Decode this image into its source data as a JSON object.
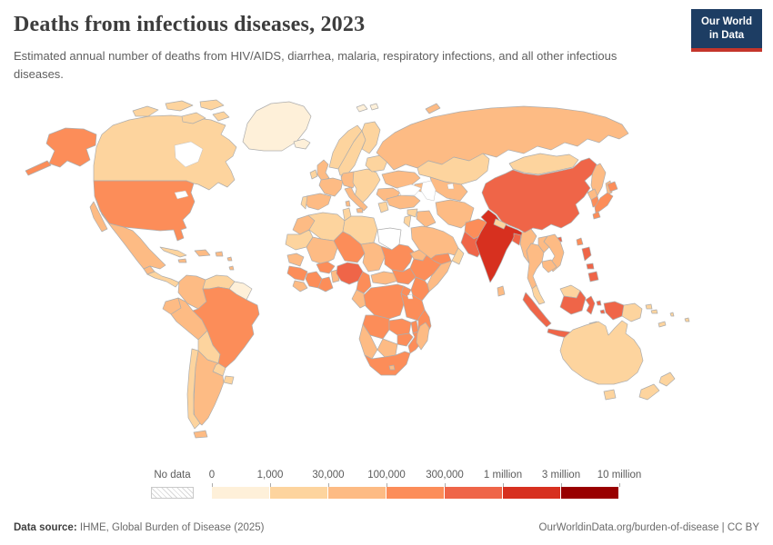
{
  "header": {
    "title": "Deaths from infectious diseases, 2023",
    "subtitle": "Estimated annual number of deaths from HIV/AIDS, diarrhea, malaria, respiratory infections, and all other infectious diseases.",
    "logo": {
      "line1": "Our World",
      "line2": "in Data"
    },
    "logo_colors": {
      "background": "#1d3d63",
      "accent": "#c4352b"
    }
  },
  "legend": {
    "no_data_label": "No data"
  },
  "footer": {
    "source_label": "Data source:",
    "source_value": "IHME, Global Burden of Disease (2025)",
    "rights": "OurWorldinData.org/burden-of-disease | CC BY"
  },
  "chart_data": {
    "type": "choropleth_map",
    "title": "Deaths from infectious diseases",
    "year": "2023",
    "unit": "estimated annual deaths",
    "bin_edges": [
      "0",
      "1,000",
      "30,000",
      "100,000",
      "300,000",
      "1 million",
      "3 million",
      "10 million"
    ],
    "bin_labels": [
      "0-1,000",
      "1,000-30,000",
      "30,000-100,000",
      "100,000-300,000",
      "300,000-1 million",
      "1 million-3 million",
      "3 million-10 million"
    ],
    "bin_colors": [
      "#fef0d9",
      "#fdd49e",
      "#fdbb84",
      "#fc8d59",
      "#ef6548",
      "#d7301f",
      "#990000"
    ],
    "stroke_color": "#adadad",
    "countries": {
      "Greenland": 0,
      "Iceland": 0,
      "Svalbard": 0,
      "Guyana and Suriname": 0,
      "Canada": 1,
      "Norway": 1,
      "Sweden": 1,
      "Finland": 1,
      "Ireland": 1,
      "Denmark": 1,
      "Central Europe": 1,
      "Belarus and Baltics": 1,
      "Greece": 1,
      "Portugal": 1,
      "Kazakhstan": 1,
      "Syria": 1,
      "Oman": 1,
      "Jordan and Israel": 1,
      "Algeria": 1,
      "Tunisia": 1,
      "Libya": 1,
      "Mauritania and Western Sahara": 1,
      "Venezuela": 1,
      "Bolivia": 1,
      "Paraguay": 1,
      "Chile": 1,
      "Uruguay": 1,
      "Central America": 1,
      "Cuba": 1,
      "Malaysia": 1,
      "Mongolia": 1,
      "Nepal": 1,
      "Australia": 1,
      "New Zealand": 1,
      "Papua New Guinea": 1,
      "Pacific Islands": 1,
      "Timor": 1,
      "Mexico": 2,
      "Guatemala": 2,
      "Haiti and Dominican Republic": 2,
      "Jamaica": 2,
      "Puerto Rico": 2,
      "Lesser Antilles": 2,
      "Colombia": 2,
      "Ecuador": 2,
      "Peru": 2,
      "Argentina": 2,
      "United Kingdom": 2,
      "France": 2,
      "Spain": 2,
      "Germany": 2,
      "Italy": 2,
      "Ukraine": 2,
      "Romania and Bulgaria": 2,
      "Russia": 2,
      "Central Asia": 2,
      "Turkey": 2,
      "Caucasus": 2,
      "Iraq": 2,
      "Iran": 2,
      "Saudi Arabia": 2,
      "Morocco": 2,
      "Mali": 2,
      "Chad": 2,
      "Senegal": 2,
      "Sierra Leone and Liberia": 2,
      "Benin and Togo": 2,
      "Central African Republic": 2,
      "Gabon and Congo": 2,
      "Somalia": 2,
      "Eritrea and Djibouti": 2,
      "Madagascar": 2,
      "Namibia": 2,
      "Botswana": 2,
      "Lesotho": 2,
      "Myanmar": 2,
      "North Korea": 2,
      "Sri Lanka": 2,
      "Laos": 2,
      "Vietnam": 2,
      "Thailand": 2,
      "Cambodia": 2,
      "United States": 3,
      "Brazil": 3,
      "Niger": 3,
      "Sudan": 3,
      "Burkina Faso": 3,
      "Guinea": 3,
      "Cote d'Ivoire": 3,
      "Ghana": 3,
      "Cameroon": 3,
      "South Sudan": 3,
      "Ethiopia": 3,
      "Uganda": 3,
      "Kenya": 3,
      "Democratic Republic of Congo": 3,
      "Tanzania": 3,
      "Angola": 3,
      "Zambia": 3,
      "Malawi": 3,
      "Mozambique": 3,
      "Zimbabwe": 3,
      "South Africa": 3,
      "Yemen": 3,
      "Afghanistan": 3,
      "Japan": 3,
      "South Korea": 3,
      "Taiwan": 3,
      "Nigeria": 4,
      "Pakistan": 4,
      "China": 4,
      "Indonesia": 4,
      "Philippines": 4,
      "Bangladesh": 4,
      "India": 5
    }
  }
}
